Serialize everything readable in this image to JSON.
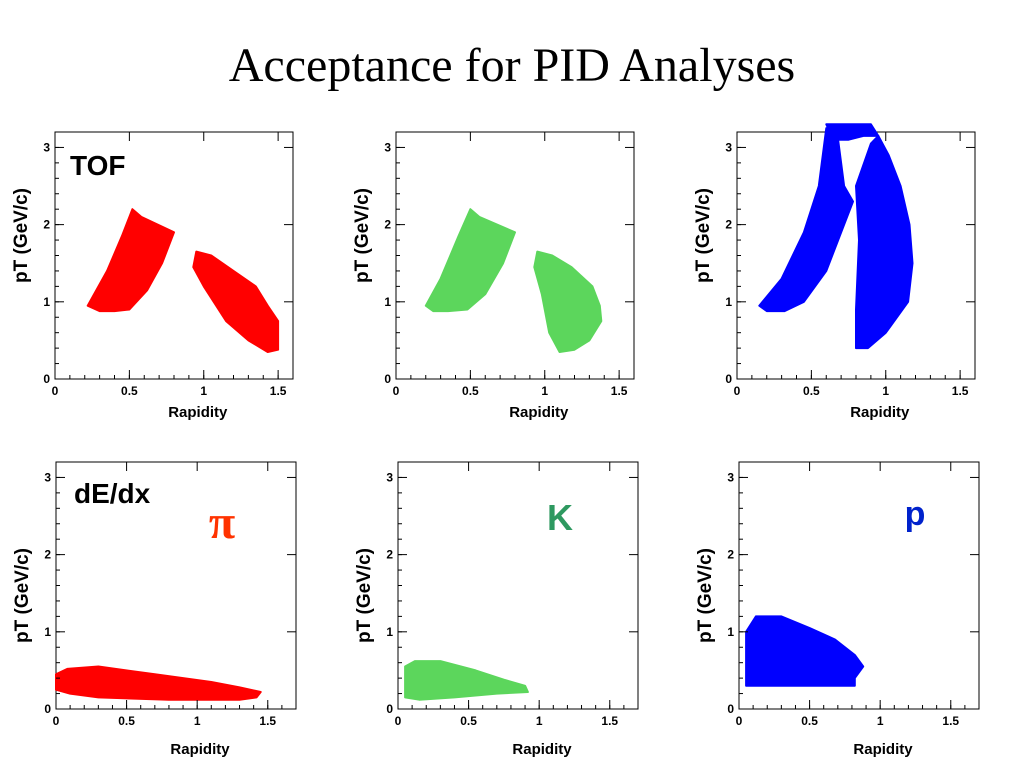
{
  "slide": {
    "title": "Acceptance for PID Analyses"
  },
  "colors": {
    "pion": "#ff0000",
    "kaon": "#5cd65c",
    "proton": "#0000ff",
    "pion_label": "#ff3300",
    "kaon_label": "#2e9960",
    "proton_label": "#0022cc"
  },
  "chart_data": [
    {
      "type": "scatter",
      "id": "tof-pion",
      "detector_label": "TOF",
      "particle_label": "",
      "color_key": "pion",
      "xlabel": "Rapidity",
      "ylabel": "pT (GeV/c)",
      "xlim": [
        0,
        1.6
      ],
      "ylim": [
        0,
        3.2
      ],
      "xticks": [
        "0",
        "0.5",
        "1",
        "1.5"
      ],
      "yticks": [
        "0",
        "1",
        "2",
        "3"
      ],
      "regions": [
        [
          [
            0.22,
            0.95
          ],
          [
            0.35,
            1.4
          ],
          [
            0.45,
            1.85
          ],
          [
            0.52,
            2.2
          ],
          [
            0.58,
            2.1
          ],
          [
            0.8,
            1.9
          ],
          [
            0.72,
            1.5
          ],
          [
            0.62,
            1.15
          ],
          [
            0.5,
            0.9
          ],
          [
            0.4,
            0.88
          ],
          [
            0.3,
            0.88
          ]
        ],
        [
          [
            0.95,
            1.65
          ],
          [
            1.05,
            1.6
          ],
          [
            1.2,
            1.4
          ],
          [
            1.35,
            1.2
          ],
          [
            1.43,
            0.95
          ],
          [
            1.5,
            0.75
          ],
          [
            1.5,
            0.38
          ],
          [
            1.43,
            0.35
          ],
          [
            1.3,
            0.5
          ],
          [
            1.15,
            0.75
          ],
          [
            1.0,
            1.2
          ],
          [
            0.93,
            1.45
          ]
        ]
      ]
    },
    {
      "type": "scatter",
      "id": "tof-kaon",
      "detector_label": "",
      "particle_label": "",
      "color_key": "kaon",
      "xlabel": "Rapidity",
      "ylabel": "pT (GeV/c)",
      "xlim": [
        0,
        1.6
      ],
      "ylim": [
        0,
        3.2
      ],
      "xticks": [
        "0",
        "0.5",
        "1",
        "1.5"
      ],
      "yticks": [
        "0",
        "1",
        "2",
        "3"
      ],
      "regions": [
        [
          [
            0.2,
            0.95
          ],
          [
            0.3,
            1.3
          ],
          [
            0.42,
            1.85
          ],
          [
            0.5,
            2.2
          ],
          [
            0.56,
            2.1
          ],
          [
            0.8,
            1.9
          ],
          [
            0.72,
            1.5
          ],
          [
            0.6,
            1.1
          ],
          [
            0.48,
            0.9
          ],
          [
            0.35,
            0.88
          ],
          [
            0.25,
            0.88
          ]
        ],
        [
          [
            0.95,
            1.65
          ],
          [
            1.05,
            1.6
          ],
          [
            1.18,
            1.45
          ],
          [
            1.32,
            1.2
          ],
          [
            1.37,
            0.95
          ],
          [
            1.38,
            0.75
          ],
          [
            1.3,
            0.5
          ],
          [
            1.2,
            0.38
          ],
          [
            1.1,
            0.35
          ],
          [
            1.03,
            0.6
          ],
          [
            0.98,
            1.1
          ],
          [
            0.93,
            1.45
          ]
        ]
      ]
    },
    {
      "type": "scatter",
      "id": "tof-proton",
      "detector_label": "",
      "particle_label": "",
      "color_key": "proton",
      "xlabel": "Rapidity",
      "ylabel": "pT (GeV/c)",
      "xlim": [
        0,
        1.6
      ],
      "ylim": [
        0,
        3.2
      ],
      "xticks": [
        "0",
        "0.5",
        "1",
        "1.5"
      ],
      "yticks": [
        "0",
        "1",
        "2",
        "3"
      ],
      "regions": [
        [
          [
            0.15,
            0.95
          ],
          [
            0.3,
            1.3
          ],
          [
            0.45,
            1.9
          ],
          [
            0.55,
            2.5
          ],
          [
            0.6,
            3.25
          ],
          [
            0.68,
            3.1
          ],
          [
            0.72,
            2.5
          ],
          [
            0.78,
            2.3
          ],
          [
            0.72,
            2.0
          ],
          [
            0.6,
            1.4
          ],
          [
            0.45,
            1.0
          ],
          [
            0.32,
            0.88
          ],
          [
            0.2,
            0.88
          ]
        ],
        [
          [
            0.8,
            2.5
          ],
          [
            0.9,
            3.05
          ],
          [
            0.95,
            3.15
          ],
          [
            1.02,
            2.9
          ],
          [
            1.1,
            2.5
          ],
          [
            1.16,
            2.0
          ],
          [
            1.18,
            1.5
          ],
          [
            1.15,
            1.0
          ],
          [
            1.0,
            0.6
          ],
          [
            0.88,
            0.4
          ],
          [
            0.8,
            0.4
          ],
          [
            0.8,
            0.9
          ],
          [
            0.82,
            1.8
          ]
        ],
        [
          [
            0.6,
            3.3
          ],
          [
            0.65,
            3.1
          ],
          [
            0.75,
            3.1
          ],
          [
            0.85,
            3.15
          ],
          [
            0.95,
            3.15
          ],
          [
            0.9,
            3.3
          ],
          [
            0.75,
            3.3
          ]
        ]
      ]
    },
    {
      "type": "scatter",
      "id": "dedx-pion",
      "detector_label": "dE/dx",
      "particle_label": "π",
      "particle_label_color_key": "pion_label",
      "color_key": "pion",
      "xlabel": "Rapidity",
      "ylabel": "pT (GeV/c)",
      "xlim": [
        0,
        1.7
      ],
      "ylim": [
        0,
        3.2
      ],
      "xticks": [
        "0",
        "0.5",
        "1",
        "1.5"
      ],
      "yticks": [
        "0",
        "1",
        "2",
        "3"
      ],
      "regions": [
        [
          [
            0.0,
            0.25
          ],
          [
            0.0,
            0.45
          ],
          [
            0.08,
            0.52
          ],
          [
            0.3,
            0.55
          ],
          [
            0.7,
            0.45
          ],
          [
            1.1,
            0.35
          ],
          [
            1.3,
            0.28
          ],
          [
            1.45,
            0.22
          ],
          [
            1.42,
            0.15
          ],
          [
            1.3,
            0.12
          ],
          [
            0.8,
            0.12
          ],
          [
            0.3,
            0.15
          ],
          [
            0.1,
            0.2
          ]
        ]
      ]
    },
    {
      "type": "scatter",
      "id": "dedx-kaon",
      "detector_label": "",
      "particle_label": "K",
      "particle_label_color_key": "kaon_label",
      "color_key": "kaon",
      "xlabel": "Rapidity",
      "ylabel": "pT (GeV/c)",
      "xlim": [
        0,
        1.7
      ],
      "ylim": [
        0,
        3.2
      ],
      "xticks": [
        "0",
        "0.5",
        "1",
        "1.5"
      ],
      "yticks": [
        "0",
        "1",
        "2",
        "3"
      ],
      "regions": [
        [
          [
            0.05,
            0.15
          ],
          [
            0.05,
            0.55
          ],
          [
            0.12,
            0.62
          ],
          [
            0.3,
            0.62
          ],
          [
            0.55,
            0.5
          ],
          [
            0.75,
            0.38
          ],
          [
            0.9,
            0.3
          ],
          [
            0.92,
            0.22
          ],
          [
            0.7,
            0.2
          ],
          [
            0.4,
            0.15
          ],
          [
            0.15,
            0.12
          ]
        ]
      ]
    },
    {
      "type": "scatter",
      "id": "dedx-proton",
      "detector_label": "",
      "particle_label": "p",
      "particle_label_color_key": "proton_label",
      "color_key": "proton",
      "xlabel": "Rapidity",
      "ylabel": "pT (GeV/c)",
      "xlim": [
        0,
        1.7
      ],
      "ylim": [
        0,
        3.2
      ],
      "xticks": [
        "0",
        "0.5",
        "1",
        "1.5"
      ],
      "yticks": [
        "0",
        "1",
        "2",
        "3"
      ],
      "regions": [
        [
          [
            0.05,
            0.3
          ],
          [
            0.05,
            1.0
          ],
          [
            0.12,
            1.2
          ],
          [
            0.3,
            1.2
          ],
          [
            0.5,
            1.05
          ],
          [
            0.68,
            0.9
          ],
          [
            0.82,
            0.7
          ],
          [
            0.88,
            0.55
          ],
          [
            0.82,
            0.4
          ],
          [
            0.82,
            0.3
          ]
        ]
      ]
    }
  ]
}
